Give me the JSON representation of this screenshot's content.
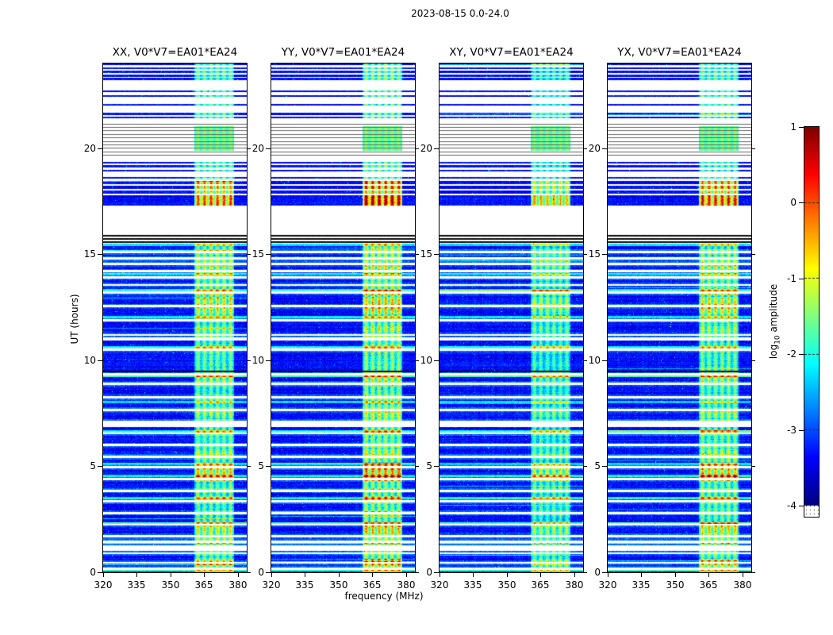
{
  "chart_data": {
    "type": "heatmap",
    "title": "2023-08-15 0.0-24.0",
    "panels": [
      {
        "label": "XX, V0*V7=EA01*EA24",
        "seed": 11,
        "band_gain": 1.0,
        "hot_gain": 1.0
      },
      {
        "label": "YY, V0*V7=EA01*EA24",
        "seed": 22,
        "band_gain": 1.1,
        "hot_gain": 1.25
      },
      {
        "label": "XY, V0*V7=EA01*EA24",
        "seed": 33,
        "band_gain": 0.85,
        "hot_gain": 0.8
      },
      {
        "label": "YX, V0*V7=EA01*EA24",
        "seed": 44,
        "band_gain": 1.0,
        "hot_gain": 1.15
      }
    ],
    "xaxis": {
      "label": "frequency (MHz)",
      "min": 320,
      "max": 384,
      "ticks": [
        320,
        335,
        350,
        365,
        380
      ]
    },
    "yaxis": {
      "label": "UT (hours)",
      "min": 0,
      "max": 24,
      "ticks": [
        0,
        5,
        10,
        15,
        20
      ]
    },
    "colorbar": {
      "label_prefix": "log",
      "label_sub": "10",
      "label_suffix": " amplitude",
      "min": -4,
      "max": 1,
      "ticks": [
        1,
        0,
        -1,
        -2,
        -3,
        -4
      ],
      "colormap": "jet"
    },
    "background_level": -3.35,
    "noise_amplitude": 0.55,
    "rfi_band": {
      "f_lo": 360.5,
      "f_hi": 378.5,
      "stripes": [
        362.3,
        365.2,
        368.1,
        371.0,
        373.9,
        376.8
      ],
      "stripe_sigma": 1.0,
      "base_boost": 0.7,
      "stripe_boost": 1.15
    },
    "time_structure": {
      "lower_max": 15.5,
      "gap_halfwidth": 0.05,
      "gap_rows": [
        15.1,
        14.8,
        14.55,
        14.2,
        13.9,
        13.55,
        13.2,
        12.55,
        11.9,
        11.2,
        10.5,
        9.33,
        8.9,
        8.25,
        7.65,
        7.1,
        6.55,
        6.0,
        5.45,
        4.95,
        4.4,
        3.85,
        3.35,
        2.8,
        2.25,
        1.7,
        1.45,
        0.9,
        0.45,
        0.18
      ],
      "wide_gaps": [
        [
          1.02,
          1.28
        ],
        [
          6.86,
          7.04
        ],
        [
          10.95,
          11.1
        ]
      ],
      "bright_rows": [
        15.45,
        14.05,
        13.32,
        12.02,
        10.62,
        9.28,
        8.02,
        6.65,
        5.1,
        4.55,
        3.5,
        2.32,
        1.35,
        0.08
      ],
      "black_intervals": [
        [
          9.42,
          9.52
        ],
        [
          15.52,
          15.6
        ],
        [
          15.67,
          15.75
        ],
        [
          15.82,
          15.9
        ]
      ],
      "upper_data_intervals": [
        [
          17.3,
          17.8
        ],
        [
          17.86,
          18.0
        ],
        [
          18.08,
          18.22
        ],
        [
          18.3,
          18.44
        ]
      ],
      "line_rows": [
        23.96,
        23.78,
        23.6,
        23.42,
        23.27,
        22.68,
        22.47,
        22.05,
        21.62,
        21.45,
        19.32,
        19.15,
        18.95,
        18.6
      ],
      "line_halfwidth": 0.045,
      "hatch": {
        "t_lo": 19.5,
        "t_hi": 21.28,
        "step": 0.165
      },
      "cyan_patch": {
        "t_lo": 19.88,
        "t_hi": 21.05
      },
      "hot_blobs": [
        [
          17.3,
          17.8,
          1.8
        ],
        [
          17.86,
          18.0,
          1.0
        ],
        [
          18.08,
          18.44,
          1.5
        ],
        [
          12.15,
          13.0,
          0.75
        ],
        [
          13.05,
          13.3,
          0.55
        ],
        [
          11.35,
          11.6,
          0.5
        ],
        [
          4.3,
          5.1,
          1.0
        ],
        [
          1.85,
          2.2,
          0.8
        ],
        [
          0.3,
          0.62,
          0.85
        ],
        [
          14.25,
          14.5,
          0.5
        ],
        [
          3.3,
          3.6,
          0.45
        ],
        [
          9.0,
          9.25,
          0.45
        ],
        [
          7.3,
          7.55,
          0.4
        ],
        [
          5.55,
          5.8,
          0.45
        ]
      ]
    }
  }
}
